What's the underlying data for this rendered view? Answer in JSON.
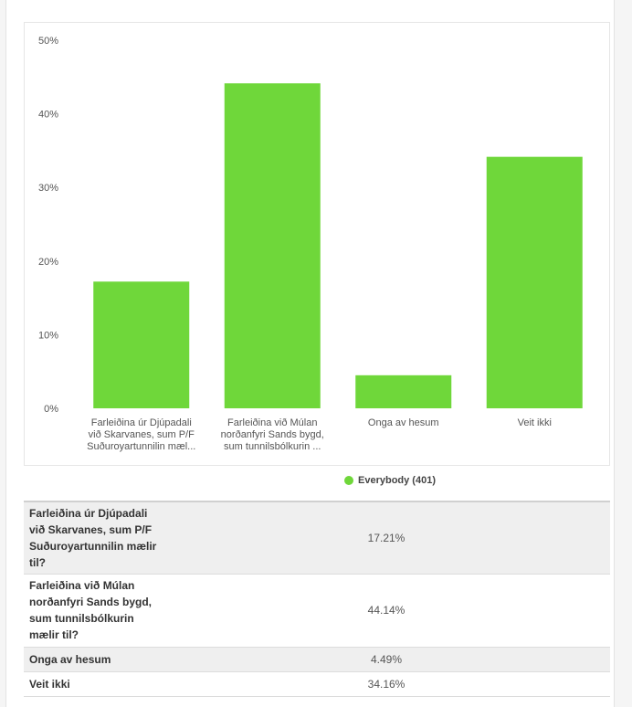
{
  "chart_data": {
    "type": "bar",
    "categories": [
      [
        "Farleiðina úr Djúpadali",
        "við Skarvanes, sum P/F",
        "Suðuroyartunnilin mæl..."
      ],
      [
        "Farleiðina við Múlan",
        "norðanfyri Sands bygd,",
        "sum tunnilsbólkurin ..."
      ],
      [
        "Onga av hesum"
      ],
      [
        "Veit ikki"
      ]
    ],
    "series": [
      {
        "name": "Everybody (401)",
        "values": [
          17.21,
          44.14,
          4.49,
          34.16
        ]
      }
    ],
    "yticks": [
      "0%",
      "10%",
      "20%",
      "30%",
      "40%",
      "50%"
    ],
    "ylim": [
      0,
      50
    ],
    "bar_color": "#6fd73a",
    "grid": false,
    "legend": "bottom-center"
  },
  "legend": {
    "label": "Everybody (401)",
    "color": "#6fd73a"
  },
  "table": {
    "rows": [
      {
        "label_lines": [
          "Farleiðina úr Djúpadali",
          "við Skarvanes, sum P/F",
          "Suðuroyartunnilin mælir",
          "til?"
        ],
        "value": "17.21%"
      },
      {
        "label_lines": [
          "Farleiðina við Múlan",
          "norðanfyri Sands bygd,",
          "sum tunnilsbólkurin",
          "mælir til?"
        ],
        "value": "44.14%"
      },
      {
        "label_lines": [
          "Onga av hesum"
        ],
        "value": "4.49%"
      },
      {
        "label_lines": [
          "Veit ikki"
        ],
        "value": "34.16%"
      }
    ]
  }
}
